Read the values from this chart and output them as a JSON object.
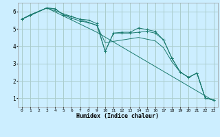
{
  "xlabel": "Humidex (Indice chaleur)",
  "background_color": "#cceeff",
  "grid_color": "#aacccc",
  "line_color": "#1a7a6e",
  "xlim": [
    -0.5,
    23.5
  ],
  "ylim": [
    0.5,
    6.5
  ],
  "xticks": [
    0,
    1,
    2,
    3,
    4,
    5,
    6,
    7,
    8,
    9,
    10,
    11,
    12,
    13,
    14,
    15,
    16,
    17,
    18,
    19,
    20,
    21,
    22,
    23
  ],
  "yticks": [
    1,
    2,
    3,
    4,
    5,
    6
  ],
  "series": [
    {
      "x": [
        0,
        1,
        3,
        4,
        5,
        6,
        7,
        8,
        9,
        10,
        11,
        12,
        13,
        14,
        15,
        16,
        17,
        18,
        19,
        20,
        21,
        22,
        23
      ],
      "y": [
        5.55,
        5.8,
        6.2,
        6.15,
        5.8,
        5.7,
        5.55,
        5.5,
        5.3,
        3.7,
        4.75,
        4.8,
        4.8,
        5.05,
        4.95,
        4.85,
        4.35,
        3.3,
        2.5,
        2.2,
        2.45,
        1.0,
        0.9
      ],
      "marker": true
    },
    {
      "x": [
        0,
        1,
        3,
        4,
        5,
        6,
        7,
        8,
        9,
        10,
        11,
        12,
        13,
        14,
        15,
        16,
        17,
        18,
        19,
        20,
        21,
        22,
        23
      ],
      "y": [
        5.55,
        5.8,
        6.2,
        6.15,
        5.8,
        5.6,
        5.45,
        5.35,
        5.2,
        3.7,
        4.75,
        4.75,
        4.75,
        4.8,
        4.85,
        4.75,
        4.35,
        3.3,
        2.5,
        2.2,
        2.45,
        1.0,
        0.9
      ],
      "marker": true
    },
    {
      "x": [
        0,
        3,
        9,
        10,
        14,
        16,
        17,
        18,
        19,
        20,
        21,
        22,
        23
      ],
      "y": [
        5.55,
        6.2,
        5.2,
        4.2,
        4.5,
        4.3,
        3.9,
        3.1,
        2.5,
        2.2,
        2.45,
        1.0,
        0.9
      ],
      "marker": false
    },
    {
      "x": [
        0,
        3,
        9,
        23
      ],
      "y": [
        5.55,
        6.2,
        4.8,
        0.85
      ],
      "marker": false
    }
  ]
}
